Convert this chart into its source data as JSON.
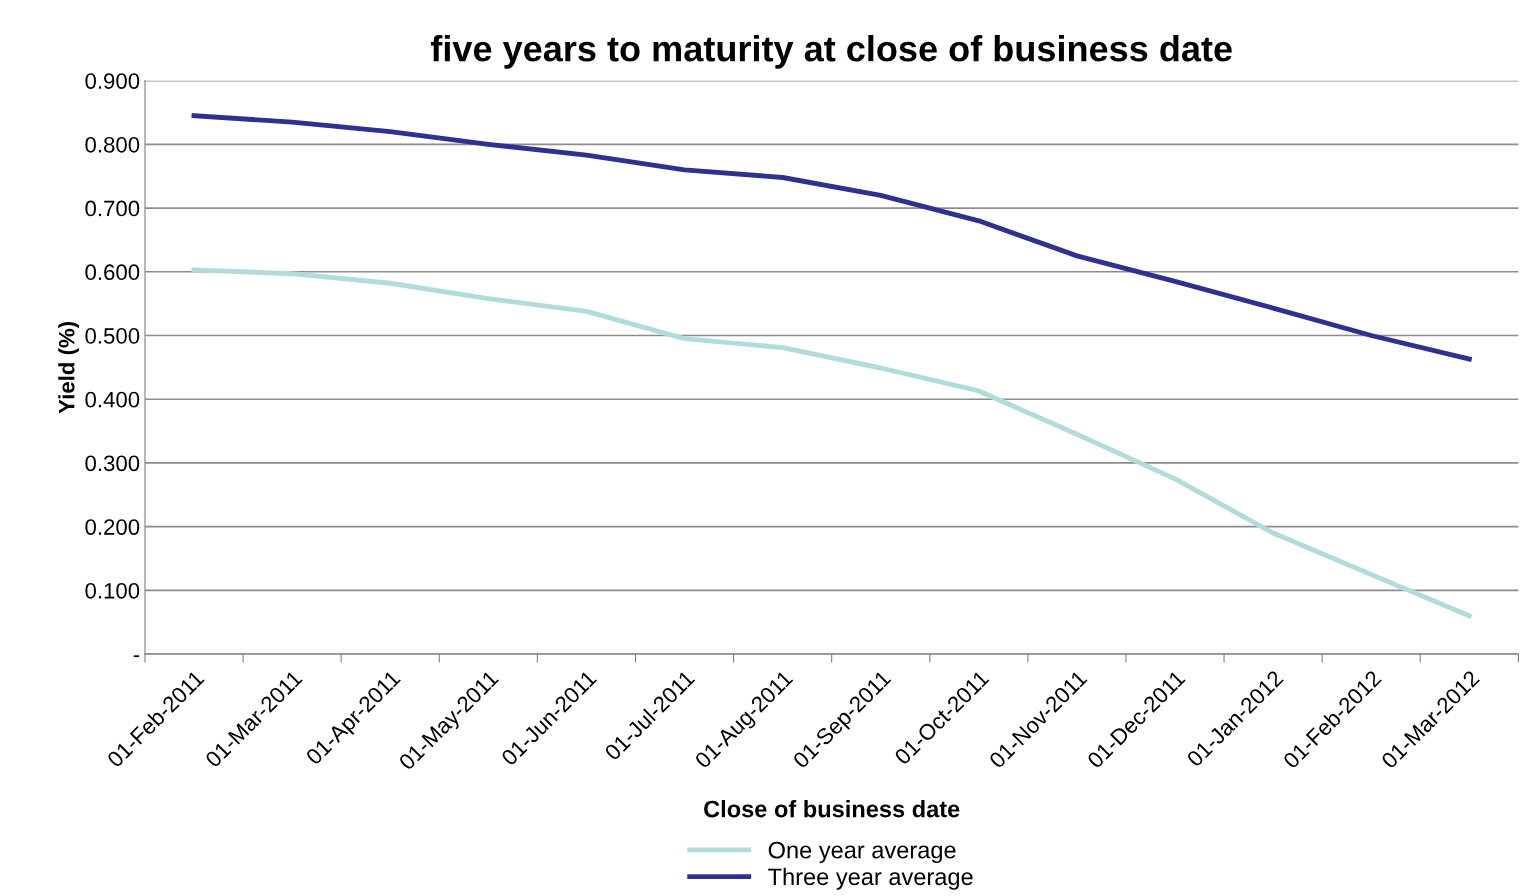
{
  "chart_data": {
    "type": "line",
    "title": "five years to maturity at close of business date",
    "xlabel": "Close of business date",
    "ylabel": "Yield (%)",
    "categories": [
      "01-Feb-2011",
      "01-Mar-2011",
      "01-Apr-2011",
      "01-May-2011",
      "01-Jun-2011",
      "01-Jul-2011",
      "01-Aug-2011",
      "01-Sep-2011",
      "01-Oct-2011",
      "01-Nov-2011",
      "01-Dec-2011",
      "01-Jan-2012",
      "01-Feb-2012",
      "01-Mar-2012"
    ],
    "series": [
      {
        "name": "One year average",
        "color": "#b0dcdc",
        "values": [
          0.603,
          0.597,
          0.582,
          0.558,
          0.538,
          0.495,
          0.481,
          0.449,
          0.413,
          0.345,
          0.275,
          0.19,
          0.125,
          0.06
        ]
      },
      {
        "name": "Three year average",
        "color": "#2e3192",
        "values": [
          0.845,
          0.835,
          0.82,
          0.8,
          0.783,
          0.76,
          0.748,
          0.72,
          0.68,
          0.625,
          0.585,
          0.543,
          0.5,
          0.463
        ]
      }
    ],
    "ylim": [
      0,
      0.9
    ],
    "yticks": [
      {
        "value": 0,
        "label": "-"
      },
      {
        "value": 0.1,
        "label": "0.100"
      },
      {
        "value": 0.2,
        "label": "0.200"
      },
      {
        "value": 0.3,
        "label": "0.300"
      },
      {
        "value": 0.4,
        "label": "0.400"
      },
      {
        "value": 0.5,
        "label": "0.500"
      },
      {
        "value": 0.6,
        "label": "0.600"
      },
      {
        "value": 0.7,
        "label": "0.700"
      },
      {
        "value": 0.8,
        "label": "0.800"
      },
      {
        "value": 0.9,
        "label": "0.900"
      }
    ],
    "grid": "y",
    "legend": "bottom",
    "marker": "none",
    "line_style": "solid"
  }
}
